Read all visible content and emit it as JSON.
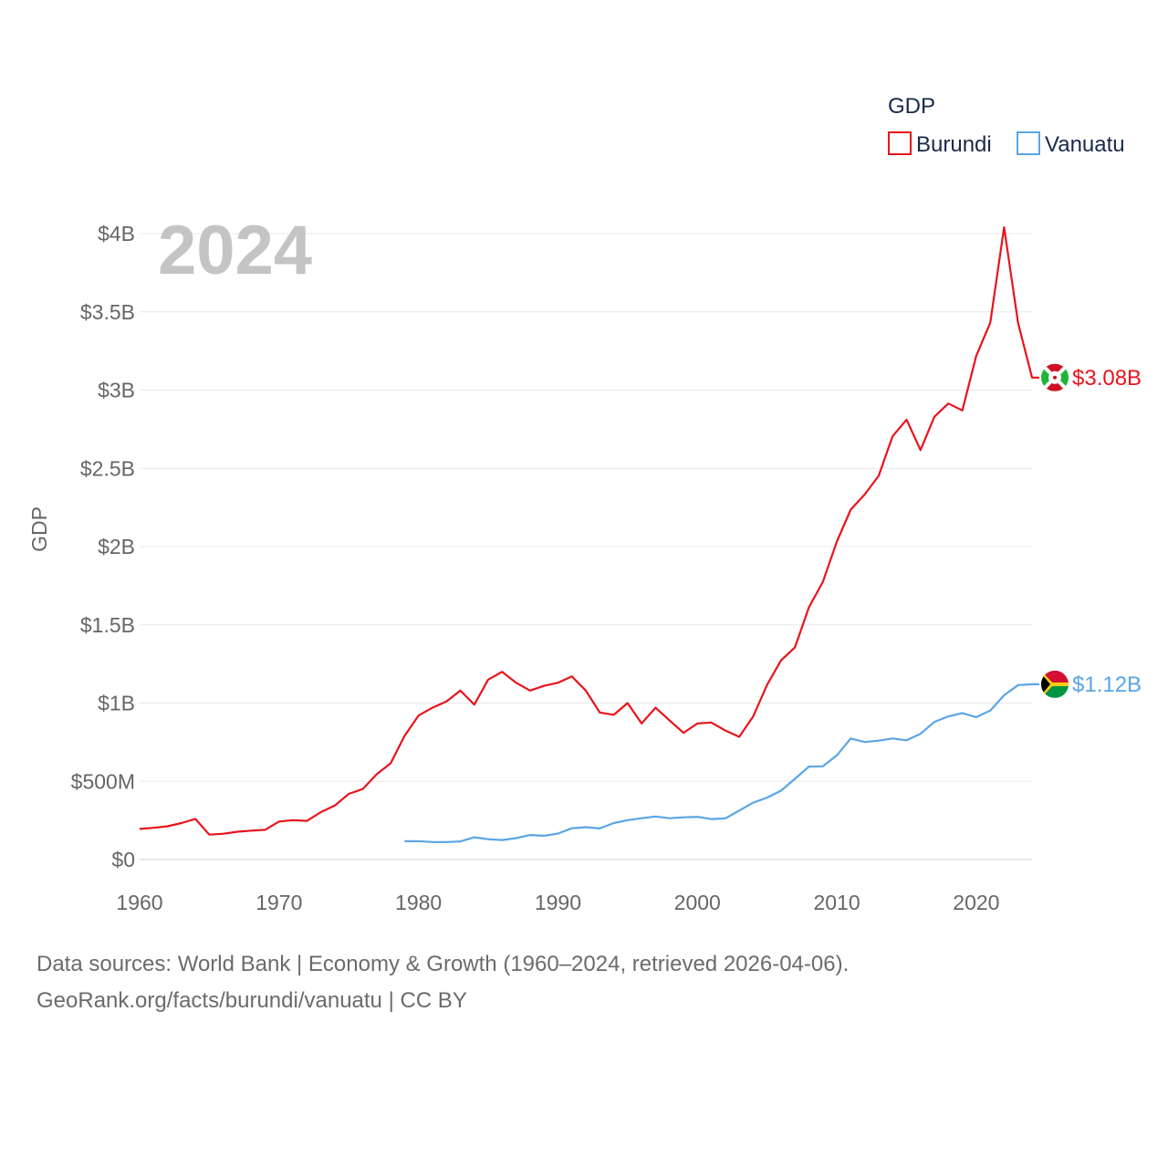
{
  "chart_data": {
    "type": "line",
    "year_label": "2024",
    "ylabel": "GDP",
    "legend_title": "GDP",
    "legend_position": "top-right",
    "ylim": [
      0,
      4000000000
    ],
    "xlim": [
      1960,
      2024
    ],
    "grid": true,
    "x_ticks": [
      {
        "value": 1960,
        "label": "1960"
      },
      {
        "value": 1970,
        "label": "1970"
      },
      {
        "value": 1980,
        "label": "1980"
      },
      {
        "value": 1990,
        "label": "1990"
      },
      {
        "value": 2000,
        "label": "2000"
      },
      {
        "value": 2010,
        "label": "2010"
      },
      {
        "value": 2020,
        "label": "2020"
      }
    ],
    "y_ticks": [
      {
        "value": 0,
        "label": "$0"
      },
      {
        "value": 500000000,
        "label": "$500M"
      },
      {
        "value": 1000000000,
        "label": "$1B"
      },
      {
        "value": 1500000000,
        "label": "$1.5B"
      },
      {
        "value": 2000000000,
        "label": "$2B"
      },
      {
        "value": 2500000000,
        "label": "$2.5B"
      },
      {
        "value": 3000000000,
        "label": "$3B"
      },
      {
        "value": 3500000000,
        "label": "$3.5B"
      },
      {
        "value": 4000000000,
        "label": "$4B"
      }
    ],
    "series": [
      {
        "name": "Burundi",
        "color": "#e8141c",
        "end_label": "$3.08B",
        "flag_colors": [
          "#cf1126",
          "#1eb53a",
          "#ffffff"
        ],
        "x": [
          1960,
          1961,
          1962,
          1963,
          1964,
          1965,
          1966,
          1967,
          1968,
          1969,
          1970,
          1971,
          1972,
          1973,
          1974,
          1975,
          1976,
          1977,
          1978,
          1979,
          1980,
          1981,
          1982,
          1983,
          1984,
          1985,
          1986,
          1987,
          1988,
          1989,
          1990,
          1991,
          1992,
          1993,
          1994,
          1995,
          1996,
          1997,
          1998,
          1999,
          2000,
          2001,
          2002,
          2003,
          2004,
          2005,
          2006,
          2007,
          2008,
          2009,
          2010,
          2011,
          2012,
          2013,
          2014,
          2015,
          2016,
          2017,
          2018,
          2019,
          2020,
          2021,
          2022,
          2023,
          2024
        ],
        "values": [
          196000000,
          203000000,
          213000000,
          233000000,
          260000000,
          159000000,
          165000000,
          178000000,
          185000000,
          190000000,
          243000000,
          252000000,
          247000000,
          303000000,
          345000000,
          420000000,
          451000000,
          545000000,
          615000000,
          790000000,
          920000000,
          970000000,
          1010000000,
          1080000000,
          990000000,
          1150000000,
          1200000000,
          1130000000,
          1080000000,
          1110000000,
          1130000000,
          1170000000,
          1080000000,
          940000000,
          925000000,
          1000000000,
          870000000,
          970000000,
          890000000,
          810000000,
          870000000,
          876000000,
          825000000,
          784000000,
          915000000,
          1117000000,
          1273000000,
          1356000000,
          1612000000,
          1775000000,
          2032000000,
          2236000000,
          2333000000,
          2452000000,
          2705000000,
          2811000000,
          2617000000,
          2830000000,
          2914000000,
          2870000000,
          3220000000,
          3430000000,
          4040000000,
          3430000000,
          3080000000
        ]
      },
      {
        "name": "Vanuatu",
        "color": "#5aa5e6",
        "end_label": "$1.12B",
        "flag_colors": [
          "#d21034",
          "#009543",
          "#000000",
          "#fdce12"
        ],
        "x": [
          1979,
          1980,
          1981,
          1982,
          1983,
          1984,
          1985,
          1986,
          1987,
          1988,
          1989,
          1990,
          1991,
          1992,
          1993,
          1994,
          1995,
          1996,
          1997,
          1998,
          1999,
          2000,
          2001,
          2002,
          2003,
          2004,
          2005,
          2006,
          2007,
          2008,
          2009,
          2010,
          2011,
          2012,
          2013,
          2014,
          2015,
          2016,
          2017,
          2018,
          2019,
          2020,
          2021,
          2022,
          2023,
          2024
        ],
        "values": [
          117000000,
          118000000,
          112000000,
          112000000,
          116000000,
          142000000,
          130000000,
          125000000,
          137000000,
          157000000,
          152000000,
          166000000,
          200000000,
          207000000,
          199000000,
          233000000,
          252000000,
          264000000,
          275000000,
          264000000,
          270000000,
          273000000,
          259000000,
          263000000,
          313000000,
          364000000,
          396000000,
          440000000,
          516000000,
          594000000,
          596000000,
          666000000,
          774000000,
          751000000,
          760000000,
          774000000,
          762000000,
          804000000,
          880000000,
          915000000,
          936000000,
          910000000,
          952000000,
          1050000000,
          1115000000,
          1120000000
        ]
      }
    ]
  },
  "footer": {
    "line1": "Data sources: World Bank | Economy & Growth (1960–2024, retrieved 2026-04-06).",
    "line2": "GeoRank.org/facts/burundi/vanuatu | CC BY"
  }
}
